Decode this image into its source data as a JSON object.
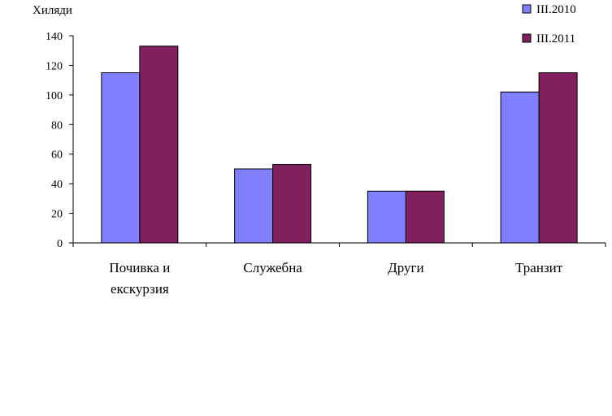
{
  "chart_data": {
    "type": "bar",
    "title": "",
    "ylabel": "Хиляди",
    "xlabel": "",
    "categories": [
      [
        "Почивка и",
        "екскурзия"
      ],
      [
        "Служебна"
      ],
      [
        "Други"
      ],
      [
        "Транзит"
      ]
    ],
    "series": [
      {
        "name": "III.2010",
        "color": "#8080ff",
        "values": [
          115,
          50,
          35,
          102
        ]
      },
      {
        "name": "III.2011",
        "color": "#80205f",
        "values": [
          133,
          53,
          35,
          115
        ]
      }
    ],
    "ylim": [
      0,
      140
    ],
    "yticks": [
      0,
      20,
      40,
      60,
      80,
      100,
      120,
      140
    ],
    "grid": false,
    "legend": "top-right"
  }
}
